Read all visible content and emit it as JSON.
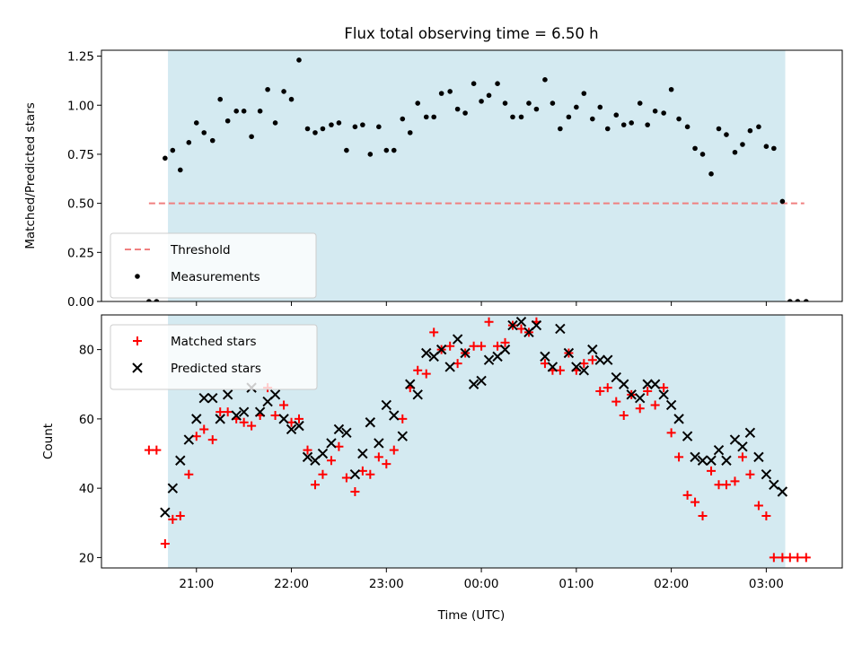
{
  "chart_data": [
    {
      "type": "scatter",
      "title": "Flux total observing time = 6.50 h",
      "xlabel": "",
      "ylabel": "Matched/Predicted stars",
      "x_unit": "hours (UTC, since 00:00, negative = previous day)",
      "xlim": [
        -4.0,
        3.8
      ],
      "ylim": [
        0.0,
        1.28
      ],
      "yticks": [
        "0.00",
        "0.25",
        "0.50",
        "0.75",
        "1.00",
        "1.25"
      ],
      "shaded_interval": [
        -3.3,
        3.2
      ],
      "shaded_color": "#d4eaf1",
      "threshold": {
        "name": "Threshold",
        "value": 0.5,
        "x_range": [
          -3.5,
          3.4
        ],
        "color": "#f08080",
        "style": "dashed"
      },
      "legend": {
        "placement": "lower-left",
        "entries": [
          "Threshold",
          "Measurements"
        ]
      },
      "series": [
        {
          "name": "Measurements",
          "marker": "dot",
          "color": "#000000",
          "x": [
            -3.5,
            -3.42,
            -3.33,
            -3.25,
            -3.17,
            -3.08,
            -3.0,
            -2.92,
            -2.83,
            -2.75,
            -2.67,
            -2.58,
            -2.5,
            -2.42,
            -2.33,
            -2.25,
            -2.17,
            -2.08,
            -2.0,
            -1.92,
            -1.83,
            -1.75,
            -1.67,
            -1.58,
            -1.5,
            -1.42,
            -1.33,
            -1.25,
            -1.17,
            -1.08,
            -1.0,
            -0.92,
            -0.83,
            -0.75,
            -0.67,
            -0.58,
            -0.5,
            -0.42,
            -0.33,
            -0.25,
            -0.17,
            -0.08,
            0.0,
            0.08,
            0.17,
            0.25,
            0.33,
            0.42,
            0.5,
            0.58,
            0.67,
            0.75,
            0.83,
            0.92,
            1.0,
            1.08,
            1.17,
            1.25,
            1.33,
            1.42,
            1.5,
            1.58,
            1.67,
            1.75,
            1.83,
            1.92,
            2.0,
            2.08,
            2.17,
            2.25,
            2.33,
            2.42,
            2.5,
            2.58,
            2.67,
            2.75,
            2.83,
            2.92,
            3.0,
            3.08,
            3.17,
            3.25,
            3.33,
            3.42
          ],
          "y": [
            0.0,
            0.0,
            0.73,
            0.77,
            0.67,
            0.81,
            0.91,
            0.86,
            0.82,
            1.03,
            0.92,
            0.97,
            0.97,
            0.84,
            0.97,
            1.08,
            0.91,
            1.07,
            1.03,
            1.23,
            0.88,
            0.86,
            0.88,
            0.9,
            0.91,
            0.77,
            0.89,
            0.9,
            0.75,
            0.89,
            0.77,
            0.77,
            0.93,
            0.86,
            1.01,
            0.94,
            0.94,
            1.06,
            1.07,
            0.98,
            0.96,
            1.11,
            1.02,
            1.05,
            1.11,
            1.01,
            0.94,
            0.94,
            1.01,
            0.98,
            1.13,
            1.01,
            0.88,
            0.94,
            0.99,
            1.06,
            0.93,
            0.99,
            0.88,
            0.95,
            0.9,
            0.91,
            1.01,
            0.9,
            0.97,
            0.96,
            1.08,
            0.93,
            0.89,
            0.78,
            0.75,
            0.65,
            0.88,
            0.85,
            0.76,
            0.8,
            0.87,
            0.89,
            0.79,
            0.78,
            0.51,
            0.0,
            0.0,
            0.0
          ]
        }
      ]
    },
    {
      "type": "scatter",
      "title": "",
      "xlabel": "Time (UTC)",
      "ylabel": "Count",
      "x_unit": "hours (UTC, since 00:00, negative = previous day)",
      "xlim": [
        -4.0,
        3.8
      ],
      "ylim": [
        17,
        90
      ],
      "yticks": [
        "20",
        "40",
        "60",
        "80"
      ],
      "xticks": [
        {
          "x": -3,
          "label": "21:00"
        },
        {
          "x": -2,
          "label": "22:00"
        },
        {
          "x": -1,
          "label": "23:00"
        },
        {
          "x": 0,
          "label": "00:00"
        },
        {
          "x": 1,
          "label": "01:00"
        },
        {
          "x": 2,
          "label": "02:00"
        },
        {
          "x": 3,
          "label": "03:00"
        }
      ],
      "shaded_interval": [
        -3.3,
        3.2
      ],
      "shaded_color": "#d4eaf1",
      "legend": {
        "placement": "top-left",
        "entries": [
          "Matched stars",
          "Predicted stars"
        ]
      },
      "series": [
        {
          "name": "Matched stars",
          "marker": "plus",
          "color": "#ff0000",
          "x": [
            -3.5,
            -3.42,
            -3.33,
            -3.25,
            -3.17,
            -3.08,
            -3.0,
            -2.92,
            -2.83,
            -2.75,
            -2.67,
            -2.58,
            -2.5,
            -2.42,
            -2.33,
            -2.25,
            -2.17,
            -2.08,
            -2.0,
            -1.92,
            -1.83,
            -1.75,
            -1.67,
            -1.58,
            -1.5,
            -1.42,
            -1.33,
            -1.25,
            -1.17,
            -1.08,
            -1.0,
            -0.92,
            -0.83,
            -0.75,
            -0.67,
            -0.58,
            -0.5,
            -0.42,
            -0.33,
            -0.25,
            -0.17,
            -0.08,
            0.0,
            0.08,
            0.17,
            0.25,
            0.33,
            0.42,
            0.5,
            0.58,
            0.67,
            0.75,
            0.83,
            0.92,
            1.0,
            1.08,
            1.17,
            1.25,
            1.33,
            1.42,
            1.5,
            1.58,
            1.67,
            1.75,
            1.83,
            1.92,
            2.0,
            2.08,
            2.17,
            2.25,
            2.33,
            2.42,
            2.5,
            2.58,
            2.67,
            2.75,
            2.83,
            2.92,
            3.0,
            3.08,
            3.17,
            3.25,
            3.33,
            3.42
          ],
          "y": [
            51,
            51,
            24,
            31,
            32,
            44,
            55,
            57,
            54,
            62,
            62,
            60,
            59,
            58,
            61,
            69,
            61,
            64,
            59,
            60,
            51,
            41,
            44,
            48,
            52,
            43,
            39,
            45,
            44,
            49,
            47,
            51,
            60,
            69,
            74,
            73,
            85,
            80,
            81,
            76,
            79,
            81,
            81,
            88,
            81,
            82,
            87,
            86,
            85,
            88,
            76,
            74,
            74,
            79,
            74,
            76,
            77,
            68,
            69,
            65,
            61,
            67,
            63,
            68,
            64,
            69,
            56,
            49,
            38,
            36,
            32,
            45,
            41,
            41,
            42,
            49,
            44,
            35,
            32,
            20,
            20,
            20,
            20,
            20
          ]
        },
        {
          "name": "Predicted stars",
          "marker": "x",
          "color": "#000000",
          "x": [
            -3.33,
            -3.25,
            -3.17,
            -3.08,
            -3.0,
            -2.92,
            -2.83,
            -2.75,
            -2.67,
            -2.58,
            -2.5,
            -2.42,
            -2.33,
            -2.25,
            -2.17,
            -2.08,
            -2.0,
            -1.92,
            -1.83,
            -1.75,
            -1.67,
            -1.58,
            -1.5,
            -1.42,
            -1.33,
            -1.25,
            -1.17,
            -1.08,
            -1.0,
            -0.92,
            -0.83,
            -0.75,
            -0.67,
            -0.58,
            -0.5,
            -0.42,
            -0.33,
            -0.25,
            -0.17,
            -0.08,
            0.0,
            0.08,
            0.17,
            0.25,
            0.33,
            0.42,
            0.5,
            0.58,
            0.67,
            0.75,
            0.83,
            0.92,
            1.0,
            1.08,
            1.17,
            1.25,
            1.33,
            1.42,
            1.5,
            1.58,
            1.67,
            1.75,
            1.83,
            1.92,
            2.0,
            2.08,
            2.17,
            2.25,
            2.33,
            2.42,
            2.5,
            2.58,
            2.67,
            2.75,
            2.83,
            2.92,
            3.0,
            3.08,
            3.17
          ],
          "y": [
            33,
            40,
            48,
            54,
            60,
            66,
            66,
            60,
            67,
            61,
            62,
            69,
            62,
            65,
            67,
            60,
            57,
            58,
            49,
            48,
            50,
            53,
            57,
            56,
            44,
            50,
            59,
            53,
            64,
            61,
            55,
            70,
            67,
            79,
            78,
            80,
            75,
            83,
            79,
            70,
            71,
            77,
            78,
            80,
            87,
            88,
            85,
            87,
            78,
            75,
            86,
            79,
            75,
            74,
            80,
            77,
            77,
            72,
            70,
            67,
            66,
            70,
            70,
            67,
            64,
            60,
            55,
            49,
            48,
            48,
            51,
            48,
            54,
            52,
            56,
            49,
            44,
            41,
            39
          ]
        }
      ]
    }
  ]
}
